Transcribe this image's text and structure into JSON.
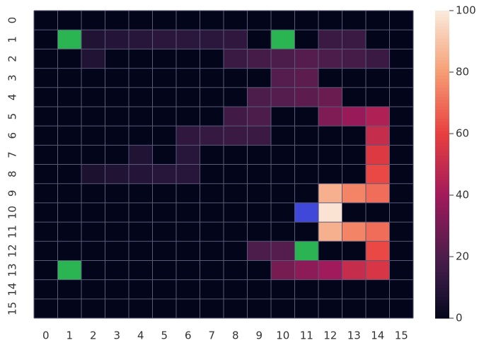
{
  "chart_data": {
    "type": "heatmap",
    "x_categories": [
      "0",
      "1",
      "2",
      "3",
      "4",
      "5",
      "6",
      "7",
      "8",
      "9",
      "10",
      "11",
      "12",
      "13",
      "14",
      "15"
    ],
    "y_categories": [
      "0",
      "1",
      "2",
      "3",
      "4",
      "5",
      "6",
      "7",
      "8",
      "9",
      "10",
      "11",
      "12",
      "13",
      "14",
      "15"
    ],
    "values": [
      [
        0,
        0,
        0,
        0,
        0,
        0,
        0,
        0,
        0,
        0,
        0,
        0,
        0,
        0,
        0,
        0
      ],
      [
        0,
        null,
        8,
        9,
        10,
        11,
        11,
        11,
        12,
        0,
        null,
        0,
        15,
        15,
        0,
        0
      ],
      [
        0,
        0,
        8,
        0,
        0,
        0,
        0,
        0,
        15,
        18,
        20,
        22,
        20,
        18,
        15,
        0
      ],
      [
        0,
        0,
        0,
        0,
        0,
        0,
        0,
        0,
        0,
        0,
        22,
        24,
        0,
        0,
        0,
        0
      ],
      [
        0,
        0,
        0,
        0,
        0,
        0,
        0,
        0,
        0,
        20,
        22,
        24,
        27,
        0,
        0,
        0
      ],
      [
        0,
        0,
        0,
        0,
        0,
        0,
        0,
        0,
        17,
        20,
        0,
        0,
        32,
        38,
        44,
        0
      ],
      [
        0,
        0,
        0,
        0,
        0,
        0,
        12,
        14,
        15,
        15,
        0,
        0,
        0,
        0,
        50,
        0
      ],
      [
        0,
        0,
        0,
        0,
        8,
        0,
        10,
        0,
        0,
        0,
        0,
        0,
        0,
        0,
        57,
        0
      ],
      [
        0,
        0,
        7,
        8,
        9,
        10,
        10,
        0,
        0,
        0,
        0,
        0,
        0,
        0,
        62,
        0
      ],
      [
        0,
        0,
        0,
        0,
        0,
        0,
        0,
        0,
        0,
        0,
        0,
        0,
        85,
        75,
        70,
        0
      ],
      [
        0,
        0,
        0,
        0,
        0,
        0,
        0,
        0,
        0,
        0,
        0,
        null,
        98,
        0,
        0,
        0
      ],
      [
        0,
        0,
        0,
        0,
        0,
        0,
        0,
        0,
        0,
        0,
        0,
        0,
        85,
        75,
        70,
        0
      ],
      [
        0,
        0,
        0,
        0,
        0,
        0,
        0,
        0,
        0,
        20,
        22,
        null,
        0,
        0,
        62,
        0
      ],
      [
        0,
        null,
        0,
        0,
        0,
        0,
        0,
        0,
        0,
        0,
        30,
        35,
        40,
        50,
        55,
        0
      ],
      [
        0,
        0,
        0,
        0,
        0,
        0,
        0,
        0,
        0,
        0,
        0,
        0,
        0,
        0,
        0,
        0
      ],
      [
        0,
        0,
        0,
        0,
        0,
        0,
        0,
        0,
        0,
        0,
        0,
        0,
        0,
        0,
        0,
        0
      ]
    ],
    "highlights": [
      {
        "row": 1,
        "col": 1,
        "color": "#2ab552"
      },
      {
        "row": 1,
        "col": 10,
        "color": "#2ab552"
      },
      {
        "row": 12,
        "col": 11,
        "color": "#2ab552"
      },
      {
        "row": 13,
        "col": 1,
        "color": "#2ab552"
      },
      {
        "row": 10,
        "col": 11,
        "color": "#3f48d8"
      }
    ],
    "clim": [
      0,
      100
    ],
    "cticks": [
      0,
      20,
      40,
      60,
      80,
      100
    ]
  }
}
